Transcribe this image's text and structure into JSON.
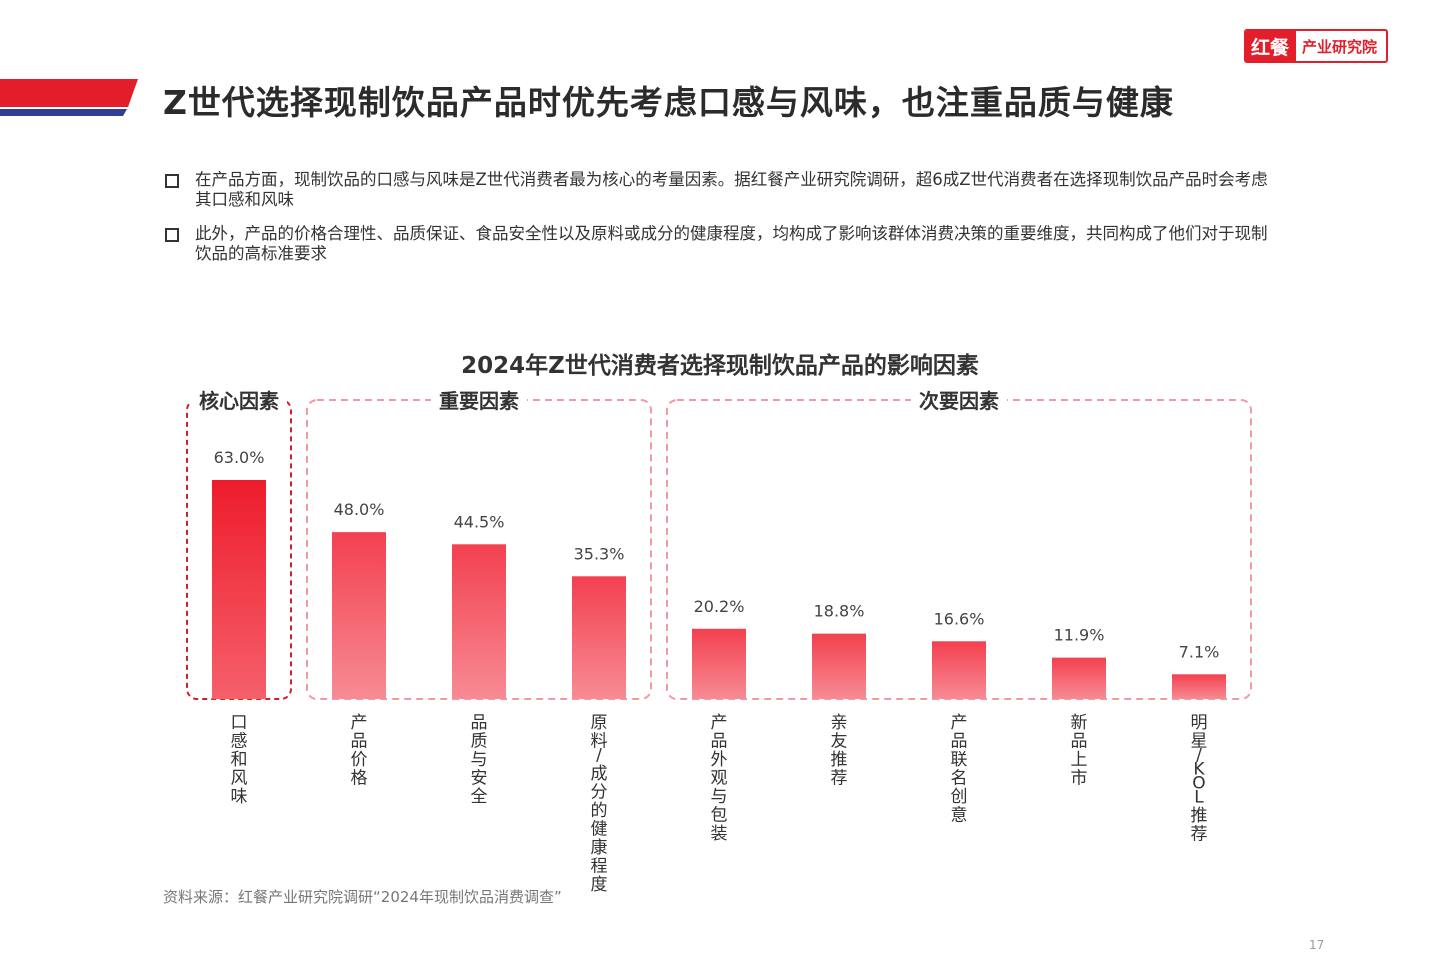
{
  "logo": {
    "brand": "红餐",
    "org": "产业研究院"
  },
  "page": {
    "title": "Z世代选择现制饮品产品时优先考虑口感与风味，也注重品质与健康",
    "bullets": [
      "在产品方面，现制饮品的口感与风味是Z世代消费者最为核心的考量因素。据红餐产业研究院调研，超6成Z世代消费者在选择现制饮品产品时会考虑其口感和风味",
      "此外，产品的价格合理性、品质保证、食品安全性以及原料或成分的健康程度，均构成了影响该群体消费决策的重要维度，共同构成了他们对于现制饮品的高标准要求"
    ],
    "source": "资料来源：红餐产业研究院调研“2024年现制饮品消费调查”",
    "page_number": "17"
  },
  "colors": {
    "accent_red": "#e31e2b",
    "navy": "#2e3f94",
    "core_bar": "#f0202e",
    "bar": "#f4505e",
    "group_box_core": "#d0202c",
    "group_box_other": "#f29aa3"
  },
  "chart_data": {
    "type": "bar",
    "title": "2024年Z世代消费者选择现制饮品产品的影响因素",
    "categories": [
      "口感和风味",
      "产品价格",
      "品质与安全",
      "原料/成分的健康程度",
      "产品外观与包装",
      "亲友推荐",
      "产品联名创意",
      "新品上市",
      "明星/KOL推荐"
    ],
    "values": [
      63.0,
      48.0,
      44.5,
      35.3,
      20.2,
      18.8,
      16.6,
      11.9,
      7.1
    ],
    "value_labels": [
      "63.0%",
      "48.0%",
      "44.5%",
      "35.3%",
      "20.2%",
      "18.8%",
      "16.6%",
      "11.9%",
      "7.1%"
    ],
    "unit": "%",
    "ylim": [
      0,
      63.0
    ],
    "grid": false,
    "groups": [
      {
        "label": "核心因素",
        "start": 0,
        "end": 0
      },
      {
        "label": "重要因素",
        "start": 1,
        "end": 3
      },
      {
        "label": "次要因素",
        "start": 4,
        "end": 8
      }
    ]
  }
}
